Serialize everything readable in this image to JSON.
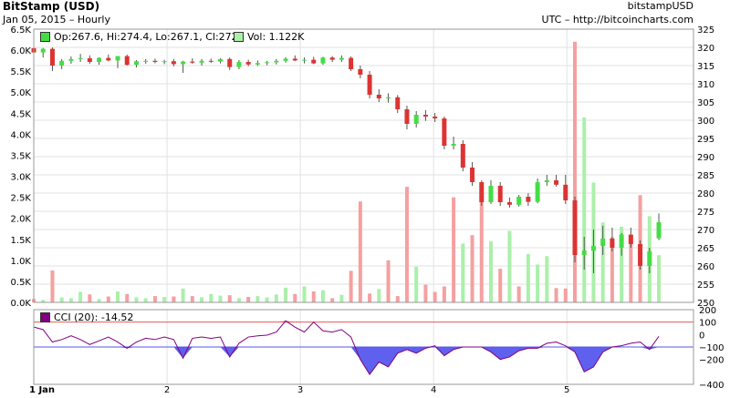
{
  "header": {
    "title": "BitStamp (USD)",
    "subtitle": "Jan 05, 2015 – Hourly",
    "brand": "bitstampUSD",
    "source": "UTC – http://bitcoincharts.com"
  },
  "legend": {
    "ohlc": "Op:267.6, Hi:274.4, Lo:267.1, Cl:272",
    "vol": "Vol: 1.122K",
    "cci": "CCI (20): -14.52"
  },
  "colors": {
    "up": "#44dd44",
    "down": "#dd3333",
    "vol_up": "#aaf0aa",
    "vol_down": "#f5a0a0",
    "cci_line": "#800080",
    "cci_fill": "#6060ee",
    "ref_upper": "#ee5555",
    "ref_lower": "#5555ee",
    "cci_swatch": "#800080",
    "grid": "#e2e2e2"
  },
  "chart_data": [
    {
      "type": "candlestick",
      "name": "price",
      "y_axis_side": "right",
      "ylim": [
        250,
        325
      ],
      "yticks": [
        "250",
        "255",
        "260",
        "265",
        "270",
        "275",
        "280",
        "285",
        "290",
        "295",
        "300",
        "305",
        "310",
        "315",
        "320",
        "325"
      ],
      "x_range": [
        1,
        5.95
      ],
      "xticks": [
        "1 Jan",
        "2",
        "3",
        "4",
        "5"
      ],
      "candles": [
        {
          "x": 1.0,
          "o": 319.8,
          "h": 320.5,
          "l": 317.5,
          "c": 318.6
        },
        {
          "x": 1.07,
          "o": 318.6,
          "h": 319.8,
          "l": 317.2,
          "c": 319.6
        },
        {
          "x": 1.14,
          "o": 319.6,
          "h": 320.0,
          "l": 313.5,
          "c": 315.0
        },
        {
          "x": 1.21,
          "o": 315.0,
          "h": 316.8,
          "l": 314.0,
          "c": 316.3
        },
        {
          "x": 1.28,
          "o": 316.3,
          "h": 317.5,
          "l": 315.5,
          "c": 316.8
        },
        {
          "x": 1.35,
          "o": 316.8,
          "h": 318.2,
          "l": 316.0,
          "c": 317.0
        },
        {
          "x": 1.42,
          "o": 317.0,
          "h": 317.8,
          "l": 315.5,
          "c": 316.0
        },
        {
          "x": 1.49,
          "o": 316.0,
          "h": 317.3,
          "l": 315.2,
          "c": 317.1
        },
        {
          "x": 1.56,
          "o": 317.1,
          "h": 318.0,
          "l": 316.2,
          "c": 316.4
        },
        {
          "x": 1.63,
          "o": 316.4,
          "h": 317.3,
          "l": 314.3,
          "c": 317.6
        },
        {
          "x": 1.7,
          "o": 317.6,
          "h": 318.0,
          "l": 315.0,
          "c": 315.2
        },
        {
          "x": 1.77,
          "o": 315.2,
          "h": 316.5,
          "l": 314.5,
          "c": 316.2
        },
        {
          "x": 1.84,
          "o": 316.2,
          "h": 316.8,
          "l": 315.5,
          "c": 316.3
        },
        {
          "x": 1.91,
          "o": 316.3,
          "h": 316.9,
          "l": 315.6,
          "c": 316.0
        },
        {
          "x": 1.98,
          "o": 316.0,
          "h": 316.6,
          "l": 315.4,
          "c": 316.2
        },
        {
          "x": 2.05,
          "o": 316.2,
          "h": 316.8,
          "l": 314.8,
          "c": 315.4
        },
        {
          "x": 2.12,
          "o": 315.4,
          "h": 316.3,
          "l": 313.0,
          "c": 316.1
        },
        {
          "x": 2.19,
          "o": 316.1,
          "h": 317.0,
          "l": 315.5,
          "c": 315.8
        },
        {
          "x": 2.26,
          "o": 315.8,
          "h": 316.8,
          "l": 315.0,
          "c": 316.3
        },
        {
          "x": 2.33,
          "o": 316.3,
          "h": 316.9,
          "l": 315.7,
          "c": 316.1
        },
        {
          "x": 2.4,
          "o": 316.1,
          "h": 317.0,
          "l": 315.6,
          "c": 316.8
        },
        {
          "x": 2.47,
          "o": 316.8,
          "h": 317.2,
          "l": 313.8,
          "c": 314.6
        },
        {
          "x": 2.54,
          "o": 314.6,
          "h": 316.5,
          "l": 314.0,
          "c": 316.0
        },
        {
          "x": 2.61,
          "o": 316.0,
          "h": 316.6,
          "l": 314.8,
          "c": 315.3
        },
        {
          "x": 2.68,
          "o": 315.3,
          "h": 316.4,
          "l": 314.9,
          "c": 315.7
        },
        {
          "x": 2.75,
          "o": 315.7,
          "h": 316.3,
          "l": 315.1,
          "c": 315.9
        },
        {
          "x": 2.82,
          "o": 315.9,
          "h": 316.8,
          "l": 315.3,
          "c": 316.3
        },
        {
          "x": 2.89,
          "o": 316.3,
          "h": 317.3,
          "l": 315.8,
          "c": 316.9
        },
        {
          "x": 2.96,
          "o": 316.9,
          "h": 317.8,
          "l": 316.2,
          "c": 316.4
        },
        {
          "x": 3.03,
          "o": 316.4,
          "h": 317.2,
          "l": 315.6,
          "c": 316.6
        },
        {
          "x": 3.1,
          "o": 316.6,
          "h": 317.4,
          "l": 315.4,
          "c": 315.6
        },
        {
          "x": 3.17,
          "o": 315.6,
          "h": 317.4,
          "l": 315.2,
          "c": 317.2
        },
        {
          "x": 3.24,
          "o": 317.2,
          "h": 317.6,
          "l": 316.0,
          "c": 316.6
        },
        {
          "x": 3.31,
          "o": 316.6,
          "h": 317.8,
          "l": 316.0,
          "c": 317.1
        },
        {
          "x": 3.38,
          "o": 317.1,
          "h": 317.5,
          "l": 313.5,
          "c": 314.0
        },
        {
          "x": 3.45,
          "o": 314.0,
          "h": 315.0,
          "l": 311.5,
          "c": 312.5
        },
        {
          "x": 3.52,
          "o": 312.5,
          "h": 313.5,
          "l": 306.0,
          "c": 307.0
        },
        {
          "x": 3.59,
          "o": 307.0,
          "h": 308.5,
          "l": 305.0,
          "c": 306.0
        },
        {
          "x": 3.66,
          "o": 306.0,
          "h": 307.4,
          "l": 304.8,
          "c": 306.3
        },
        {
          "x": 3.73,
          "o": 306.3,
          "h": 306.9,
          "l": 302.0,
          "c": 303.0
        },
        {
          "x": 3.8,
          "o": 303.0,
          "h": 304.0,
          "l": 297.5,
          "c": 299.0
        },
        {
          "x": 3.87,
          "o": 299.0,
          "h": 302.5,
          "l": 298.0,
          "c": 301.5
        },
        {
          "x": 3.94,
          "o": 301.5,
          "h": 302.8,
          "l": 299.8,
          "c": 301.0
        },
        {
          "x": 4.01,
          "o": 301.0,
          "h": 302.0,
          "l": 299.5,
          "c": 300.5
        },
        {
          "x": 4.08,
          "o": 300.5,
          "h": 301.0,
          "l": 292.0,
          "c": 293.0
        },
        {
          "x": 4.15,
          "o": 293.0,
          "h": 295.5,
          "l": 292.0,
          "c": 293.5
        },
        {
          "x": 4.22,
          "o": 293.5,
          "h": 294.5,
          "l": 286.0,
          "c": 287.0
        },
        {
          "x": 4.29,
          "o": 287.0,
          "h": 288.5,
          "l": 282.0,
          "c": 283.0
        },
        {
          "x": 4.36,
          "o": 283.0,
          "h": 283.5,
          "l": 276.5,
          "c": 277.5
        },
        {
          "x": 4.43,
          "o": 277.5,
          "h": 283.5,
          "l": 277.0,
          "c": 282.0
        },
        {
          "x": 4.5,
          "o": 282.0,
          "h": 283.0,
          "l": 276.5,
          "c": 277.5
        },
        {
          "x": 4.57,
          "o": 277.5,
          "h": 278.8,
          "l": 276.0,
          "c": 276.8
        },
        {
          "x": 4.64,
          "o": 276.8,
          "h": 279.5,
          "l": 276.3,
          "c": 279.0
        },
        {
          "x": 4.71,
          "o": 279.0,
          "h": 280.0,
          "l": 276.5,
          "c": 277.6
        },
        {
          "x": 4.78,
          "o": 277.6,
          "h": 284.0,
          "l": 277.2,
          "c": 283.0
        },
        {
          "x": 4.85,
          "o": 283.0,
          "h": 285.0,
          "l": 282.0,
          "c": 283.5
        },
        {
          "x": 4.92,
          "o": 283.5,
          "h": 285.0,
          "l": 281.8,
          "c": 282.3
        },
        {
          "x": 4.99,
          "o": 282.3,
          "h": 285.0,
          "l": 277.0,
          "c": 278.0
        },
        {
          "x": 5.06,
          "o": 278.0,
          "h": 279.0,
          "l": 261.0,
          "c": 263.0
        },
        {
          "x": 5.13,
          "o": 263.0,
          "h": 268.0,
          "l": 259.0,
          "c": 264.2
        },
        {
          "x": 5.2,
          "o": 264.2,
          "h": 270.0,
          "l": 258.0,
          "c": 265.5
        },
        {
          "x": 5.27,
          "o": 265.5,
          "h": 271.0,
          "l": 263.0,
          "c": 267.5
        },
        {
          "x": 5.34,
          "o": 267.5,
          "h": 270.5,
          "l": 264.0,
          "c": 265.0
        },
        {
          "x": 5.41,
          "o": 265.0,
          "h": 269.0,
          "l": 262.8,
          "c": 268.6
        },
        {
          "x": 5.48,
          "o": 268.6,
          "h": 270.5,
          "l": 265.0,
          "c": 266.0
        },
        {
          "x": 5.55,
          "o": 266.0,
          "h": 267.0,
          "l": 259.0,
          "c": 260.0
        },
        {
          "x": 5.62,
          "o": 260.0,
          "h": 265.0,
          "l": 258.0,
          "c": 264.0
        },
        {
          "x": 5.69,
          "o": 267.6,
          "h": 274.4,
          "l": 267.1,
          "c": 272.0
        }
      ]
    },
    {
      "type": "bar",
      "name": "volume",
      "y_axis_side": "left",
      "ylim": [
        0,
        6500
      ],
      "yticks": [
        "0.0K",
        "0.5K",
        "1.0K",
        "1.5K",
        "2.0K",
        "2.5K",
        "3.0K",
        "3.5K",
        "4.0K",
        "4.5K",
        "5.0K",
        "5.5K",
        "6.0K",
        "6.5K"
      ],
      "bars": [
        {
          "x": 1.0,
          "v": 80,
          "dir": "down"
        },
        {
          "x": 1.07,
          "v": 60,
          "dir": "up"
        },
        {
          "x": 1.14,
          "v": 760,
          "dir": "down"
        },
        {
          "x": 1.21,
          "v": 120,
          "dir": "up"
        },
        {
          "x": 1.28,
          "v": 100,
          "dir": "up"
        },
        {
          "x": 1.35,
          "v": 250,
          "dir": "up"
        },
        {
          "x": 1.42,
          "v": 190,
          "dir": "down"
        },
        {
          "x": 1.49,
          "v": 80,
          "dir": "up"
        },
        {
          "x": 1.56,
          "v": 140,
          "dir": "down"
        },
        {
          "x": 1.63,
          "v": 260,
          "dir": "up"
        },
        {
          "x": 1.7,
          "v": 200,
          "dir": "down"
        },
        {
          "x": 1.77,
          "v": 120,
          "dir": "up"
        },
        {
          "x": 1.84,
          "v": 100,
          "dir": "up"
        },
        {
          "x": 1.91,
          "v": 150,
          "dir": "down"
        },
        {
          "x": 1.98,
          "v": 130,
          "dir": "up"
        },
        {
          "x": 2.05,
          "v": 140,
          "dir": "down"
        },
        {
          "x": 2.12,
          "v": 330,
          "dir": "up"
        },
        {
          "x": 2.19,
          "v": 150,
          "dir": "down"
        },
        {
          "x": 2.26,
          "v": 120,
          "dir": "up"
        },
        {
          "x": 2.33,
          "v": 200,
          "dir": "up"
        },
        {
          "x": 2.4,
          "v": 160,
          "dir": "up"
        },
        {
          "x": 2.47,
          "v": 170,
          "dir": "down"
        },
        {
          "x": 2.54,
          "v": 100,
          "dir": "up"
        },
        {
          "x": 2.61,
          "v": 130,
          "dir": "down"
        },
        {
          "x": 2.68,
          "v": 150,
          "dir": "up"
        },
        {
          "x": 2.75,
          "v": 120,
          "dir": "up"
        },
        {
          "x": 2.82,
          "v": 190,
          "dir": "up"
        },
        {
          "x": 2.89,
          "v": 350,
          "dir": "up"
        },
        {
          "x": 2.96,
          "v": 200,
          "dir": "down"
        },
        {
          "x": 3.03,
          "v": 380,
          "dir": "up"
        },
        {
          "x": 3.1,
          "v": 260,
          "dir": "down"
        },
        {
          "x": 3.17,
          "v": 290,
          "dir": "up"
        },
        {
          "x": 3.24,
          "v": 100,
          "dir": "down"
        },
        {
          "x": 3.31,
          "v": 180,
          "dir": "up"
        },
        {
          "x": 3.38,
          "v": 750,
          "dir": "down"
        },
        {
          "x": 3.45,
          "v": 2400,
          "dir": "down"
        },
        {
          "x": 3.52,
          "v": 210,
          "dir": "down"
        },
        {
          "x": 3.59,
          "v": 320,
          "dir": "up"
        },
        {
          "x": 3.66,
          "v": 1000,
          "dir": "down"
        },
        {
          "x": 3.73,
          "v": 150,
          "dir": "down"
        },
        {
          "x": 3.8,
          "v": 2750,
          "dir": "down"
        },
        {
          "x": 3.87,
          "v": 850,
          "dir": "up"
        },
        {
          "x": 3.94,
          "v": 420,
          "dir": "down"
        },
        {
          "x": 4.01,
          "v": 250,
          "dir": "down"
        },
        {
          "x": 4.08,
          "v": 380,
          "dir": "down"
        },
        {
          "x": 4.15,
          "v": 2500,
          "dir": "down"
        },
        {
          "x": 4.22,
          "v": 1400,
          "dir": "up"
        },
        {
          "x": 4.29,
          "v": 1600,
          "dir": "down"
        },
        {
          "x": 4.36,
          "v": 2500,
          "dir": "down"
        },
        {
          "x": 4.43,
          "v": 1450,
          "dir": "up"
        },
        {
          "x": 4.5,
          "v": 800,
          "dir": "down"
        },
        {
          "x": 4.57,
          "v": 1700,
          "dir": "up"
        },
        {
          "x": 4.64,
          "v": 380,
          "dir": "down"
        },
        {
          "x": 4.71,
          "v": 1150,
          "dir": "up"
        },
        {
          "x": 4.78,
          "v": 900,
          "dir": "up"
        },
        {
          "x": 4.85,
          "v": 1100,
          "dir": "up"
        },
        {
          "x": 4.92,
          "v": 340,
          "dir": "down"
        },
        {
          "x": 4.99,
          "v": 330,
          "dir": "down"
        },
        {
          "x": 5.06,
          "v": 6200,
          "dir": "down"
        },
        {
          "x": 5.13,
          "v": 4400,
          "dir": "up"
        },
        {
          "x": 5.2,
          "v": 2850,
          "dir": "up"
        },
        {
          "x": 5.27,
          "v": 1900,
          "dir": "up"
        },
        {
          "x": 5.34,
          "v": 1550,
          "dir": "down"
        },
        {
          "x": 5.41,
          "v": 1800,
          "dir": "up"
        },
        {
          "x": 5.48,
          "v": 1550,
          "dir": "down"
        },
        {
          "x": 5.55,
          "v": 2550,
          "dir": "down"
        },
        {
          "x": 5.62,
          "v": 2050,
          "dir": "up"
        },
        {
          "x": 5.69,
          "v": 1122,
          "dir": "up"
        }
      ]
    },
    {
      "type": "area",
      "name": "cci",
      "y_axis_side": "right",
      "ylim": [
        -400,
        200
      ],
      "yticks": [
        "200",
        "100",
        "0",
        "−100",
        "−200",
        "−400"
      ],
      "ytick_values": [
        200,
        100,
        0,
        -100,
        -200,
        -400
      ],
      "ref_lines": [
        100,
        -100
      ],
      "x": [
        1.0,
        1.07,
        1.14,
        1.21,
        1.28,
        1.35,
        1.42,
        1.49,
        1.56,
        1.63,
        1.7,
        1.77,
        1.84,
        1.91,
        1.98,
        2.05,
        2.12,
        2.19,
        2.26,
        2.33,
        2.4,
        2.47,
        2.54,
        2.61,
        2.68,
        2.75,
        2.82,
        2.89,
        2.96,
        3.03,
        3.1,
        3.17,
        3.24,
        3.31,
        3.38,
        3.45,
        3.52,
        3.59,
        3.66,
        3.73,
        3.8,
        3.87,
        3.94,
        4.01,
        4.08,
        4.15,
        4.22,
        4.29,
        4.36,
        4.43,
        4.5,
        4.57,
        4.64,
        4.71,
        4.78,
        4.85,
        4.92,
        4.99,
        5.06,
        5.13,
        5.2,
        5.27,
        5.34,
        5.41,
        5.48,
        5.55,
        5.62,
        5.69
      ],
      "values": [
        60,
        40,
        -60,
        -40,
        -10,
        -40,
        -80,
        -50,
        -20,
        -60,
        -110,
        -60,
        -30,
        -40,
        -20,
        -40,
        -190,
        -30,
        -20,
        -30,
        -20,
        -180,
        -70,
        -20,
        -10,
        -5,
        20,
        110,
        60,
        20,
        100,
        30,
        20,
        40,
        -20,
        -200,
        -320,
        -220,
        -260,
        -150,
        -120,
        -150,
        -110,
        -90,
        -170,
        -120,
        -100,
        -100,
        -100,
        -140,
        -200,
        -180,
        -130,
        -110,
        -110,
        -70,
        -60,
        -90,
        -140,
        -300,
        -260,
        -140,
        -100,
        -90,
        -70,
        -60,
        -120,
        -14.52
      ]
    }
  ]
}
